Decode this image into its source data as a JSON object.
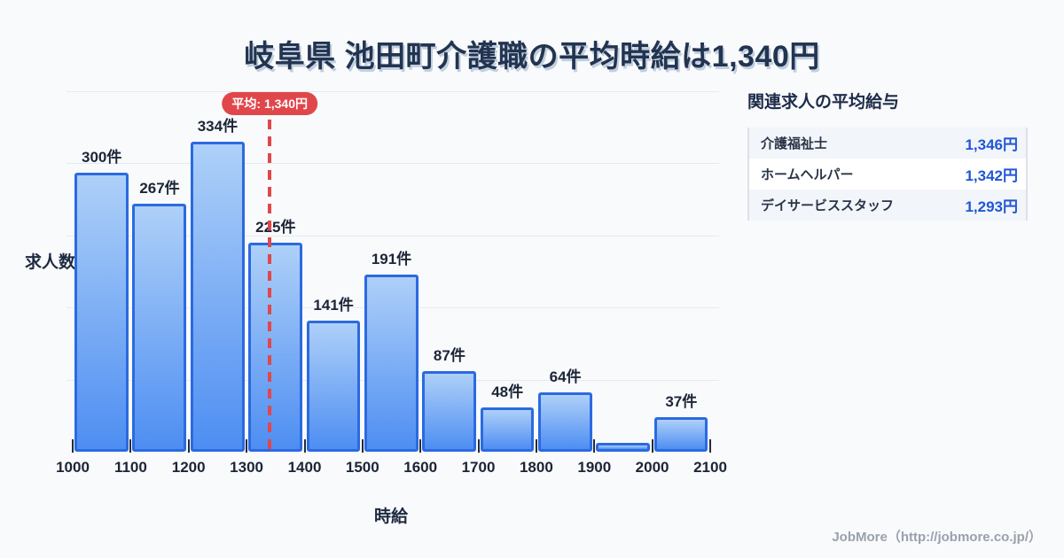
{
  "title": "岐阜県 池田町介護職の平均時給は1,340円",
  "chart_data": {
    "type": "bar",
    "title": "岐阜県 池田町介護職の平均時給は1,340円",
    "xlabel": "時給",
    "ylabel": "求人数",
    "x_range": [
      1000,
      2100
    ],
    "bin_width": 100,
    "x_tick_labels": [
      "1000",
      "1100",
      "1200",
      "1300",
      "1400",
      "1500",
      "1600",
      "1700",
      "1800",
      "1900",
      "2000",
      "2100"
    ],
    "categories": [
      "1000-1100",
      "1100-1200",
      "1200-1300",
      "1300-1400",
      "1400-1500",
      "1500-1600",
      "1600-1700",
      "1700-1800",
      "1800-1900",
      "1900-2000",
      "2000-2100"
    ],
    "values": [
      300,
      267,
      334,
      225,
      141,
      191,
      87,
      48,
      64,
      10,
      37
    ],
    "bar_labels": [
      "300件",
      "267件",
      "334件",
      "225件",
      "141件",
      "191件",
      "87件",
      "48件",
      "64件",
      "",
      "37件"
    ],
    "average_line": {
      "value": 1340,
      "label": "平均: 1,340円"
    },
    "ylim": [
      0,
      388
    ],
    "grid": true,
    "gridline_count": 5,
    "legend_position": "none"
  },
  "side_panel": {
    "title": "関連求人の平均給与",
    "rows": [
      {
        "label": "介護福祉士",
        "value": "1,346円"
      },
      {
        "label": "ホームヘルパー",
        "value": "1,342円"
      },
      {
        "label": "デイサービススタッフ",
        "value": "1,293円"
      }
    ]
  },
  "footer": {
    "credit": "JobMore（http://jobmore.co.jp/）"
  },
  "colors": {
    "background": "#f8fafc",
    "title_text": "#223450",
    "bar_fill_top": "#aed0f8",
    "bar_fill_bottom": "#4e8ef2",
    "bar_border": "#2b6ae0",
    "average_red": "#e0474b",
    "value_blue": "#2156d4",
    "gridline": "#e6e9f0",
    "axis_text": "#1c2536",
    "footer_text": "#9aa1ac"
  }
}
